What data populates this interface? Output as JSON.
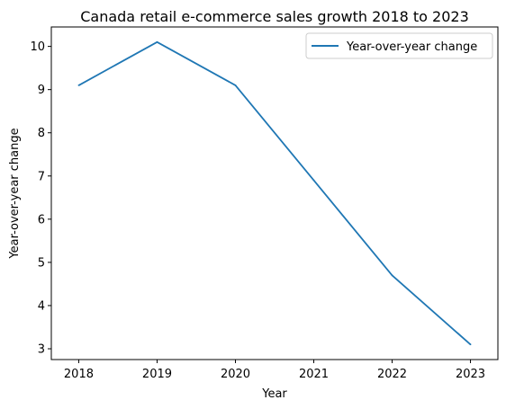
{
  "chart_data": {
    "type": "line",
    "title": "Canada retail e-commerce sales growth 2018 to 2023",
    "xlabel": "Year",
    "ylabel": "Year-over-year change",
    "x": [
      "2018",
      "2019",
      "2020",
      "2021",
      "2022",
      "2023"
    ],
    "series": [
      {
        "name": "Year-over-year change",
        "values": [
          9.1,
          10.1,
          9.1,
          6.9,
          4.7,
          3.1
        ],
        "color": "#1f77b4"
      }
    ],
    "yticks": [
      "3",
      "4",
      "5",
      "6",
      "7",
      "8",
      "9",
      "10"
    ],
    "ylim": [
      2.75,
      10.45
    ],
    "grid": false,
    "legend_position": "top-right"
  }
}
